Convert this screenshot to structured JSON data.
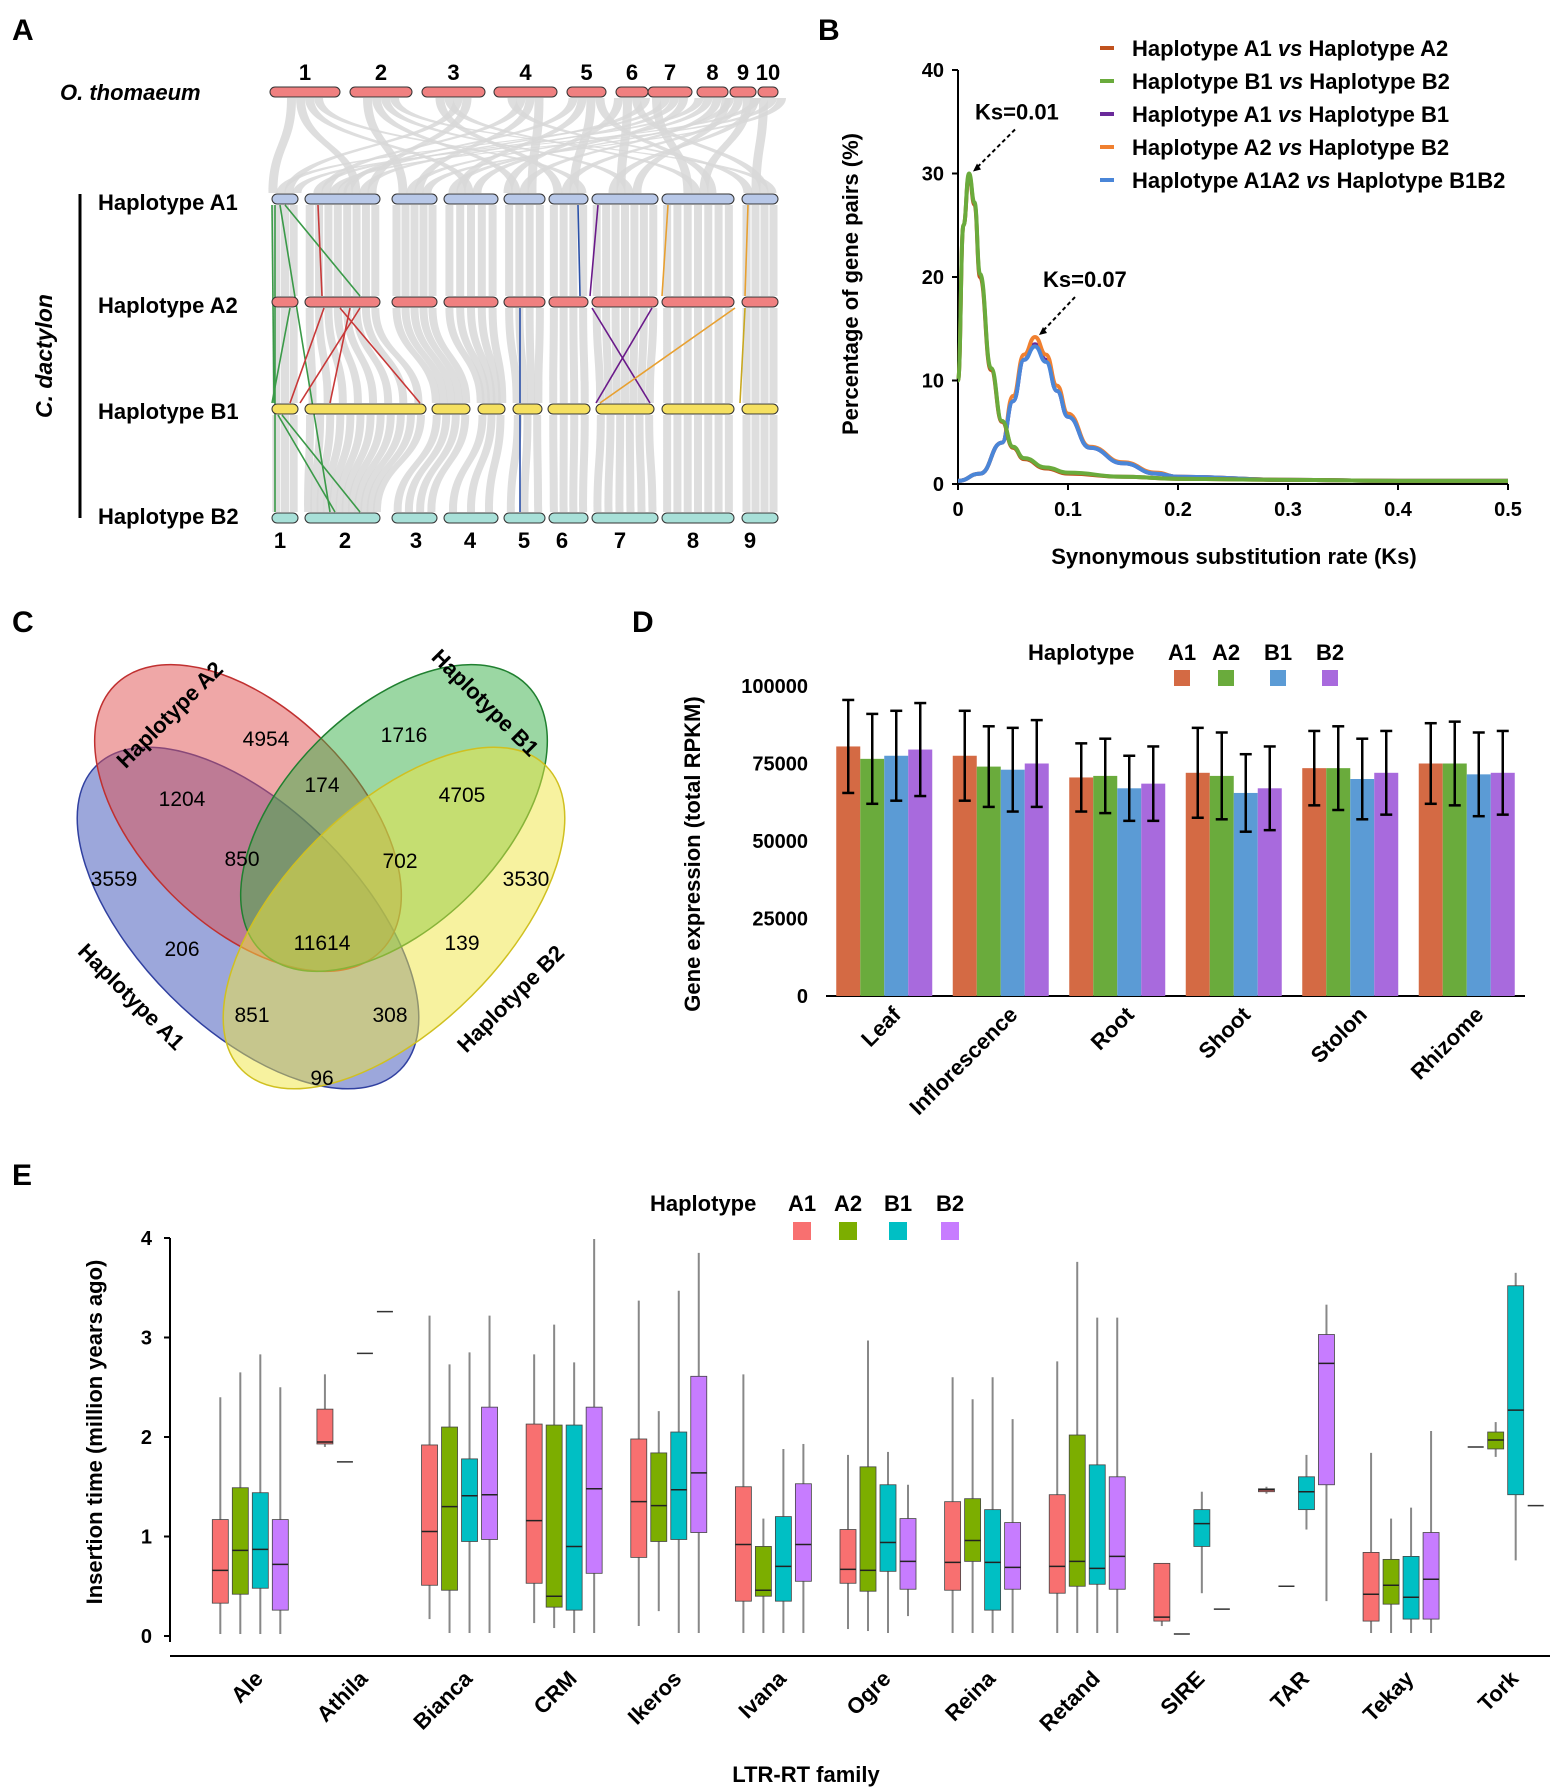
{
  "panels": {
    "A": {
      "label": "A",
      "top_species": "O. thomaeum",
      "top_chromosomes": [
        "1",
        "2",
        "3",
        "4",
        "5",
        "6",
        "7",
        "8",
        "9",
        "10"
      ],
      "side_label": "C. dactylon",
      "rows": [
        "Haplotype A1",
        "Haplotype A2",
        "Haplotype B1",
        "Haplotype B2"
      ],
      "bottom_chromosomes": [
        "1",
        "2",
        "3",
        "4",
        "5",
        "6",
        "7",
        "8",
        "9"
      ],
      "colors": {
        "top": "#f08080",
        "a1": "#b8c8e8",
        "a2": "#f08080",
        "b1": "#f5e060",
        "b2": "#a8e0d8"
      }
    },
    "D": {
      "label": "D",
      "legend_title": "Haplotype",
      "legend": [
        "A1",
        "A2",
        "B1",
        "B2"
      ]
    },
    "E": {
      "label": "E",
      "legend_title": "Haplotype",
      "legend": [
        "A1",
        "A2",
        "B1",
        "B2"
      ]
    }
  },
  "chart_data": [
    {
      "id": "B",
      "panel_label": "B",
      "type": "line",
      "title": "",
      "xlabel": "Synonymous substitution rate (Ks)",
      "ylabel": "Percentage of gene pairs (%)",
      "xlim": [
        0,
        0.5
      ],
      "ylim": [
        0,
        40
      ],
      "xticks": [
        "0",
        "0.1",
        "0.2",
        "0.3",
        "0.4",
        "0.5"
      ],
      "yticks": [
        "0",
        "10",
        "20",
        "30",
        "40"
      ],
      "series": [
        {
          "name_parts": [
            "Haplotype A1 ",
            "vs",
            " Haplotype A2"
          ],
          "color": "#c0521e",
          "x": [
            0,
            0.005,
            0.01,
            0.015,
            0.02,
            0.03,
            0.04,
            0.05,
            0.06,
            0.08,
            0.1,
            0.15,
            0.2,
            0.3,
            0.4,
            0.5
          ],
          "y": [
            10,
            25,
            29.8,
            27,
            20,
            11,
            6,
            3.5,
            2.4,
            1.5,
            1.0,
            0.7,
            0.5,
            0.4,
            0.3,
            0.3
          ]
        },
        {
          "name_parts": [
            "Haplotype B1 ",
            "vs",
            " Haplotype B2"
          ],
          "color": "#6aab3c",
          "x": [
            0,
            0.005,
            0.01,
            0.015,
            0.02,
            0.03,
            0.04,
            0.05,
            0.06,
            0.08,
            0.1,
            0.15,
            0.2,
            0.3,
            0.4,
            0.5
          ],
          "y": [
            10,
            25,
            30,
            27.2,
            20.3,
            11.2,
            6.1,
            3.6,
            2.5,
            1.6,
            1.1,
            0.7,
            0.5,
            0.4,
            0.3,
            0.3
          ]
        },
        {
          "name_parts": [
            "Haplotype A1 ",
            "vs",
            " Haplotype B1"
          ],
          "color": "#6a2a9a",
          "x": [
            0,
            0.02,
            0.04,
            0.05,
            0.06,
            0.07,
            0.08,
            0.09,
            0.1,
            0.12,
            0.15,
            0.18,
            0.2,
            0.3,
            0.4,
            0.5
          ],
          "y": [
            0.3,
            1,
            4,
            8,
            12,
            13.5,
            12,
            9,
            6.5,
            3.5,
            2,
            1,
            0.7,
            0.4,
            0.3,
            0.3
          ]
        },
        {
          "name_parts": [
            "Haplotype A2 ",
            "vs",
            " Haplotype B2"
          ],
          "color": "#f08030",
          "x": [
            0,
            0.02,
            0.04,
            0.05,
            0.06,
            0.07,
            0.08,
            0.09,
            0.1,
            0.12,
            0.15,
            0.18,
            0.2,
            0.3,
            0.4,
            0.5
          ],
          "y": [
            0.3,
            1,
            4,
            8.5,
            12.5,
            14.2,
            12.5,
            9.5,
            6.8,
            3.6,
            2.1,
            1.1,
            0.7,
            0.4,
            0.3,
            0.3
          ]
        },
        {
          "name_parts": [
            "Haplotype A1A2 ",
            "vs",
            " Haplotype B1B2"
          ],
          "color": "#4a86d8",
          "x": [
            0,
            0.02,
            0.04,
            0.05,
            0.06,
            0.07,
            0.08,
            0.09,
            0.1,
            0.12,
            0.15,
            0.18,
            0.2,
            0.3,
            0.4,
            0.5
          ],
          "y": [
            0.3,
            1,
            4,
            8,
            12,
            13.3,
            11.8,
            9,
            6.5,
            3.5,
            2,
            1,
            0.7,
            0.4,
            0.3,
            0.3
          ]
        }
      ],
      "annotations": [
        {
          "text": "Ks=0.01",
          "x": 0.01,
          "y": 30
        },
        {
          "text": "Ks=0.07",
          "x": 0.07,
          "y": 14.2
        }
      ]
    },
    {
      "id": "C",
      "panel_label": "C",
      "type": "venn",
      "sets": [
        "Haplotype A2",
        "Haplotype B1",
        "Haplotype A1",
        "Haplotype B2"
      ],
      "regions": [
        {
          "sets": [
            "A2"
          ],
          "value": 4954
        },
        {
          "sets": [
            "B1"
          ],
          "value": 1716
        },
        {
          "sets": [
            "A1"
          ],
          "value": 3559
        },
        {
          "sets": [
            "B2"
          ],
          "value": 3530
        },
        {
          "sets": [
            "A1",
            "A2"
          ],
          "value": 1204
        },
        {
          "sets": [
            "A2",
            "B1"
          ],
          "value": 174
        },
        {
          "sets": [
            "B1",
            "B2"
          ],
          "value": 4705
        },
        {
          "sets": [
            "A1",
            "A2",
            "B1"
          ],
          "value": 850
        },
        {
          "sets": [
            "A2",
            "B1",
            "B2"
          ],
          "value": 702
        },
        {
          "sets": [
            "A1",
            "B1"
          ],
          "value": 206
        },
        {
          "sets": [
            "A1",
            "A2",
            "B1",
            "B2"
          ],
          "value": 11614
        },
        {
          "sets": [
            "A2",
            "B2"
          ],
          "value": 139
        },
        {
          "sets": [
            "A1",
            "B1",
            "B2"
          ],
          "value": 851
        },
        {
          "sets": [
            "A1",
            "A2",
            "B2"
          ],
          "value": 308
        },
        {
          "sets": [
            "A1",
            "B2"
          ],
          "value": 96
        }
      ]
    },
    {
      "id": "D",
      "panel_label": "D",
      "type": "bar",
      "xlabel": "",
      "ylabel": "Gene expression (total RPKM)",
      "ylim": [
        0,
        100000
      ],
      "yticks": [
        "0",
        "25000",
        "50000",
        "75000",
        "100000"
      ],
      "categories": [
        "Leaf",
        "Inflorescence",
        "Root",
        "Shoot",
        "Stolon",
        "Rhizome"
      ],
      "colors": [
        "#d46a44",
        "#6aab3c",
        "#5b9bd5",
        "#a86add"
      ],
      "series": [
        {
          "name": "A1",
          "values": [
            80500,
            77500,
            70500,
            72000,
            73500,
            75000
          ],
          "err": [
            15000,
            14500,
            11000,
            14500,
            12000,
            13000
          ]
        },
        {
          "name": "A2",
          "values": [
            76500,
            74000,
            71000,
            71000,
            73500,
            75000
          ],
          "err": [
            14500,
            13000,
            12000,
            14000,
            13500,
            13500
          ]
        },
        {
          "name": "B1",
          "values": [
            77500,
            73000,
            67000,
            65500,
            70000,
            71500
          ],
          "err": [
            14500,
            13500,
            10500,
            12500,
            13000,
            13500
          ]
        },
        {
          "name": "B2",
          "values": [
            79500,
            75000,
            68500,
            67000,
            72000,
            72000
          ],
          "err": [
            15000,
            14000,
            12000,
            13500,
            13500,
            13500
          ]
        }
      ]
    },
    {
      "id": "E",
      "panel_label": "E",
      "type": "box",
      "xlabel": "LTR-RT family",
      "ylabel": "Insertion time (million years ago)",
      "ylim": [
        0,
        4
      ],
      "yticks": [
        "0",
        "1",
        "2",
        "3",
        "4"
      ],
      "categories": [
        "Ale",
        "Athila",
        "Bianca",
        "CRM",
        "Ikeros",
        "Ivana",
        "Ogre",
        "Reina",
        "Retand",
        "SIRE",
        "TAR",
        "Tekay",
        "Tork"
      ],
      "colors": [
        "#f87070",
        "#7cae00",
        "#00bfc4",
        "#c77cff"
      ],
      "boxes": [
        [
          [
            0.02,
            0.33,
            0.66,
            1.17,
            2.4
          ],
          [
            0.02,
            0.42,
            0.86,
            1.49,
            2.65
          ],
          [
            0.02,
            0.48,
            0.87,
            1.44,
            2.83
          ],
          [
            0.02,
            0.26,
            0.72,
            1.17,
            2.5
          ]
        ],
        [
          [
            1.9,
            1.93,
            1.95,
            2.28,
            2.63
          ],
          [
            1.75,
            1.75,
            1.75,
            1.75,
            1.75
          ],
          [
            2.84,
            2.84,
            2.84,
            2.84,
            2.84
          ],
          [
            3.26,
            3.26,
            3.26,
            3.26,
            3.26
          ]
        ],
        [
          [
            0.17,
            0.51,
            1.05,
            1.92,
            3.22
          ],
          [
            0.03,
            0.46,
            1.3,
            2.1,
            2.73
          ],
          [
            0.03,
            0.95,
            1.41,
            1.78,
            2.85
          ],
          [
            0.03,
            0.97,
            1.42,
            2.3,
            3.22
          ]
        ],
        [
          [
            0.13,
            0.53,
            1.16,
            2.13,
            2.83
          ],
          [
            0.08,
            0.29,
            0.4,
            2.12,
            3.13
          ],
          [
            0.03,
            0.26,
            0.9,
            2.12,
            2.75
          ],
          [
            0.03,
            0.63,
            1.48,
            2.3,
            3.99
          ]
        ],
        [
          [
            0.1,
            0.79,
            1.35,
            1.98,
            3.37
          ],
          [
            0.25,
            0.95,
            1.31,
            1.84,
            2.26
          ],
          [
            0.03,
            0.97,
            1.47,
            2.05,
            3.47
          ],
          [
            0.03,
            1.04,
            1.64,
            2.61,
            3.85
          ]
        ],
        [
          [
            0.03,
            0.35,
            0.92,
            1.5,
            2.63
          ],
          [
            0.03,
            0.4,
            0.46,
            0.9,
            1.18
          ],
          [
            0.03,
            0.35,
            0.7,
            1.2,
            1.88
          ],
          [
            0.03,
            0.55,
            0.92,
            1.53,
            1.93
          ]
        ],
        [
          [
            0.07,
            0.53,
            0.67,
            1.07,
            1.82
          ],
          [
            0.05,
            0.45,
            0.66,
            1.7,
            2.97
          ],
          [
            0.03,
            0.65,
            0.94,
            1.52,
            1.85
          ],
          [
            0.2,
            0.47,
            0.75,
            1.18,
            1.52
          ]
        ],
        [
          [
            0.03,
            0.46,
            0.74,
            1.35,
            2.6
          ],
          [
            0.03,
            0.75,
            0.96,
            1.38,
            2.38
          ],
          [
            0.03,
            0.26,
            0.74,
            1.27,
            2.6
          ],
          [
            0.03,
            0.47,
            0.69,
            1.14,
            2.18
          ]
        ],
        [
          [
            0.03,
            0.43,
            0.7,
            1.42,
            2.76
          ],
          [
            0.03,
            0.5,
            0.75,
            2.02,
            3.76
          ],
          [
            0.03,
            0.52,
            0.68,
            1.72,
            3.2
          ],
          [
            0.03,
            0.47,
            0.8,
            1.6,
            3.2
          ]
        ],
        [
          [
            0.1,
            0.15,
            0.19,
            0.73,
            0.73
          ],
          [
            0.02,
            0.02,
            0.02,
            0.02,
            0.02
          ],
          [
            0.43,
            0.9,
            1.13,
            1.27,
            1.45
          ],
          [
            0.27,
            0.27,
            0.27,
            0.27,
            0.27
          ]
        ],
        [
          [
            1.43,
            1.45,
            1.47,
            1.48,
            1.5
          ],
          [
            0.5,
            0.5,
            0.5,
            0.5,
            0.5
          ],
          [
            1.07,
            1.27,
            1.45,
            1.6,
            1.82
          ],
          [
            0.35,
            1.52,
            2.74,
            3.03,
            3.33
          ]
        ],
        [
          [
            0.03,
            0.15,
            0.42,
            0.84,
            1.84
          ],
          [
            0.03,
            0.32,
            0.51,
            0.77,
            1.18
          ],
          [
            0.03,
            0.17,
            0.39,
            0.8,
            1.29
          ],
          [
            0.03,
            0.17,
            0.57,
            1.04,
            2.06
          ]
        ],
        [
          [
            1.9,
            1.9,
            1.9,
            1.9,
            1.9
          ],
          [
            1.8,
            1.88,
            1.97,
            2.05,
            2.15
          ],
          [
            0.76,
            1.42,
            2.27,
            3.52,
            3.65
          ],
          [
            1.31,
            1.31,
            1.31,
            1.31,
            1.31
          ]
        ]
      ]
    }
  ]
}
